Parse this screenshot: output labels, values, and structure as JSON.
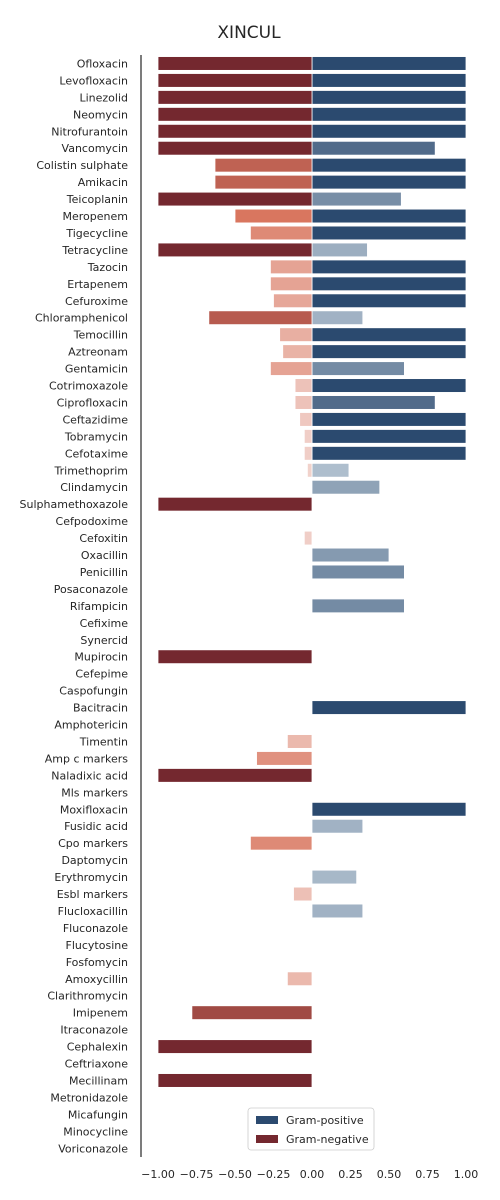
{
  "chart_data": {
    "type": "bar",
    "orientation": "horizontal",
    "title": "XINCUL",
    "xlabel": "",
    "ylabel": "",
    "xlim": [
      -1.1,
      1.0
    ],
    "x_ticks": [
      "−1.00",
      "−0.75",
      "−0.50",
      "−0.25",
      "0.00",
      "0.25",
      "0.50",
      "0.75",
      "1.00"
    ],
    "x_tick_values": [
      -1.0,
      -0.75,
      -0.5,
      -0.25,
      0.0,
      0.25,
      0.5,
      0.75,
      1.0
    ],
    "grid": false,
    "legend_position": "bottom-center",
    "colors": {
      "positive_strong": "#2b4a6f",
      "positive_light": "#cbd8e2",
      "negative_strong": "#74282f",
      "negative_light": "#f3d8d2"
    },
    "categories": [
      "Ofloxacin",
      "Levofloxacin",
      "Linezolid",
      "Neomycin",
      "Nitrofurantoin",
      "Vancomycin",
      "Colistin sulphate",
      "Amikacin",
      "Teicoplanin",
      "Meropenem",
      "Tigecycline",
      "Tetracycline",
      "Tazocin",
      "Ertapenem",
      "Cefuroxime",
      "Chloramphenicol",
      "Temocillin",
      "Aztreonam",
      "Gentamicin",
      "Cotrimoxazole",
      "Ciprofloxacin",
      "Ceftazidime",
      "Tobramycin",
      "Cefotaxime",
      "Trimethoprim",
      "Clindamycin",
      "Sulphamethoxazole",
      "Cefpodoxime",
      "Cefoxitin",
      "Oxacillin",
      "Penicillin",
      "Posaconazole",
      "Rifampicin",
      "Cefixime",
      "Synercid",
      "Mupirocin",
      "Cefepime",
      "Caspofungin",
      "Bacitracin",
      "Amphotericin",
      "Timentin",
      "Amp c markers",
      "Naladixic acid",
      "Mls markers",
      "Moxifloxacin",
      "Fusidic acid",
      "Cpo markers",
      "Daptomycin",
      "Erythromycin",
      "Esbl markers",
      "Flucloxacillin",
      "Fluconazole",
      "Flucytosine",
      "Fosfomycin",
      "Amoxycillin",
      "Clarithromycin",
      "Imipenem",
      "Itraconazole",
      "Cephalexin",
      "Ceftriaxone",
      "Mecillinam",
      "Metronidazole",
      "Micafungin",
      "Minocycline",
      "Voriconazole"
    ],
    "series": [
      {
        "name": "Gram-positive",
        "values": [
          1.0,
          1.0,
          1.0,
          1.0,
          1.0,
          0.8,
          1.0,
          1.0,
          0.58,
          1.0,
          1.0,
          0.36,
          1.0,
          1.0,
          1.0,
          0.33,
          1.0,
          1.0,
          0.6,
          1.0,
          0.8,
          1.0,
          1.0,
          1.0,
          0.24,
          0.44,
          0,
          0,
          0,
          0.5,
          0.6,
          0,
          0.6,
          0,
          0,
          0,
          0,
          0,
          1.0,
          0,
          0,
          0,
          0,
          0,
          1.0,
          0.33,
          0,
          0,
          0.29,
          0,
          0.33,
          0,
          0,
          0,
          0,
          0,
          0,
          0,
          0,
          0,
          0,
          0,
          0,
          0,
          0
        ]
      },
      {
        "name": "Gram-negative",
        "values": [
          -1.0,
          -1.0,
          -1.0,
          -1.0,
          -1.0,
          -1.0,
          -0.63,
          -0.63,
          -1.0,
          -0.5,
          -0.4,
          -1.0,
          -0.27,
          -0.27,
          -0.25,
          -0.67,
          -0.21,
          -0.19,
          -0.27,
          -0.11,
          -0.11,
          -0.08,
          -0.05,
          -0.05,
          -0.03,
          0,
          -1.0,
          0,
          -0.05,
          0,
          0,
          0,
          0,
          0,
          0,
          -1.0,
          0,
          0,
          0,
          0,
          -0.16,
          -0.36,
          -1.0,
          0,
          0,
          0,
          -0.4,
          0,
          0,
          -0.12,
          0,
          0,
          0,
          0,
          -0.16,
          0,
          -0.78,
          0,
          -1.0,
          0,
          -1.0,
          0,
          0,
          0,
          0
        ]
      }
    ]
  }
}
